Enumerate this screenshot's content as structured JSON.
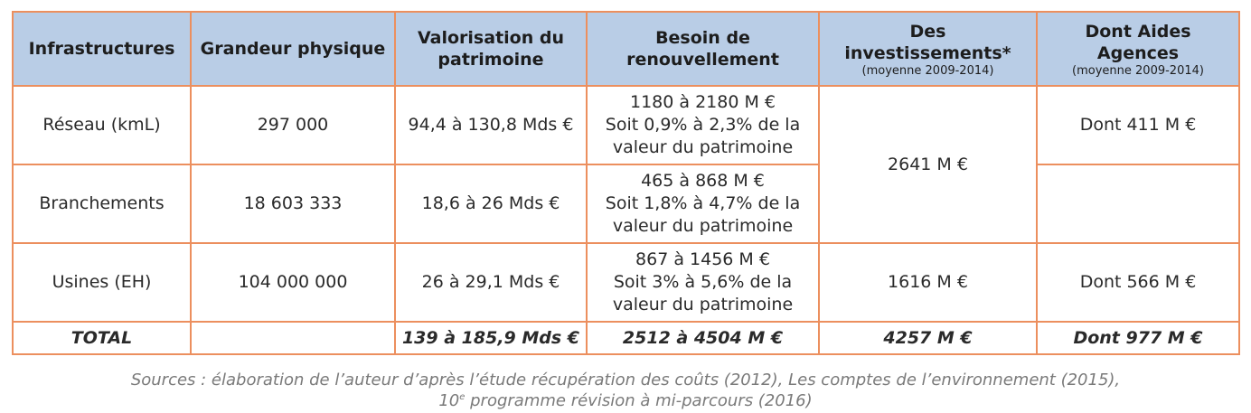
{
  "headers": {
    "infrastructures": "Infrastructures",
    "grandeur": "Grandeur physique",
    "valorisation": "Valorisation du patrimoine",
    "besoin": "Besoin de renouvellement",
    "investissements": "Des investissements*",
    "investissements_sub": "(moyenne 2009-2014)",
    "aides": "Dont Aides Agences",
    "aides_sub": "(moyenne 2009-2014)"
  },
  "rows": [
    {
      "infra": "Réseau (kmL)",
      "grandeur": "297 000",
      "valorisation": "94,4 à 130,8 Mds €",
      "besoin_line1": "1180 à 2180 M €",
      "besoin_line2": "Soit 0,9% à 2,3% de la",
      "besoin_line3": "valeur du patrimoine",
      "aides": "Dont 411 M €"
    },
    {
      "infra": "Branchements",
      "grandeur": "18 603 333",
      "valorisation": "18,6 à 26 Mds €",
      "besoin_line1": "465 à 868 M €",
      "besoin_line2": "Soit 1,8% à 4,7% de la",
      "besoin_line3": "valeur du patrimoine",
      "aides": ""
    },
    {
      "infra": "Usines (EH)",
      "grandeur": "104 000 000",
      "valorisation": "26 à 29,1 Mds €",
      "besoin_line1": "867 à 1456 M €",
      "besoin_line2": "Soit 3% à 5,6% de la",
      "besoin_line3": "valeur du patrimoine",
      "investissements": "1616 M €",
      "aides": "Dont 566 M €"
    }
  ],
  "merged_investissements_rows_1_2": "2641 M €",
  "total": {
    "label": "TOTAL",
    "grandeur": "",
    "valorisation": "139 à 185,9 Mds €",
    "besoin": "2512 à 4504 M €",
    "investissements": "4257 M €",
    "aides": "Dont 977 M €"
  },
  "source": {
    "line1": "Sources : élaboration de l’auteur d’après l’étude récupération des coûts (2012), Les comptes de l’environnement (2015),",
    "line2_num": "10",
    "line2_sup": "e",
    "line2_rest": " programme révision à mi-parcours (2016)"
  },
  "colors": {
    "header_bg": "#b9cde6",
    "border": "#ec8f5e",
    "source_text": "#7a7a7a"
  }
}
